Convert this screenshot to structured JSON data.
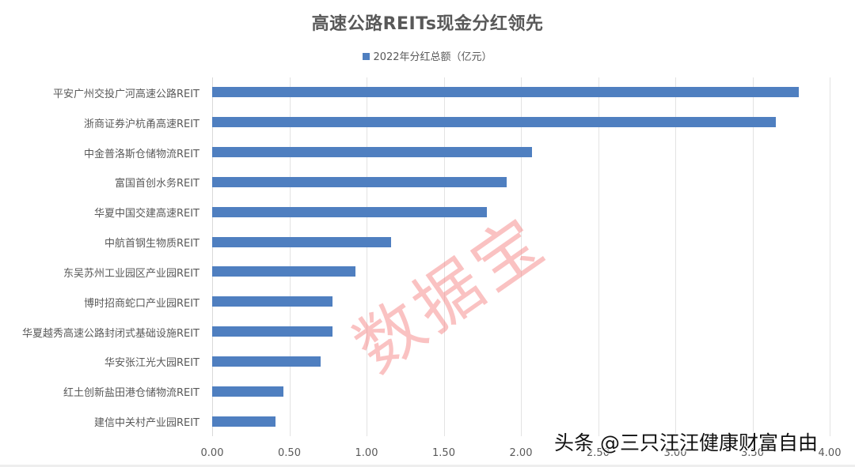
{
  "chart_data": {
    "type": "bar",
    "orientation": "horizontal",
    "title": "高速公路REITs现金分红领先",
    "legend": [
      "2022年分红总额（亿元）"
    ],
    "legend_position": "top",
    "xlabel": "",
    "ylabel": "",
    "xlim": [
      0,
      4
    ],
    "x_ticks": [
      "0.00",
      "0.50",
      "1.00",
      "1.50",
      "2.00",
      "2.50",
      "3.00",
      "3.50",
      "4.00"
    ],
    "grid": true,
    "categories": [
      "平安广州交投广河高速公路REIT",
      "浙商证券沪杭甬高速REIT",
      "中金普洛斯仓储物流REIT",
      "富国首创水务REIT",
      "华夏中国交建高速REIT",
      "中航首钢生物质REIT",
      "东吴苏州工业园区产业园REIT",
      "博时招商蛇口产业园REIT",
      "华夏越秀高速公路封闭式基础设施REIT",
      "华安张江光大园REIT",
      "红土创新盐田港仓储物流REIT",
      "建信中关村产业园REIT"
    ],
    "series": [
      {
        "name": "2022年分红总额（亿元）",
        "color": "#4f7fc0",
        "values": [
          3.8,
          3.65,
          2.07,
          1.91,
          1.78,
          1.16,
          0.93,
          0.78,
          0.78,
          0.7,
          0.46,
          0.41
        ]
      }
    ]
  },
  "watermark": "数据宝",
  "credit": "头条 @三只汪汪健康财富自由"
}
